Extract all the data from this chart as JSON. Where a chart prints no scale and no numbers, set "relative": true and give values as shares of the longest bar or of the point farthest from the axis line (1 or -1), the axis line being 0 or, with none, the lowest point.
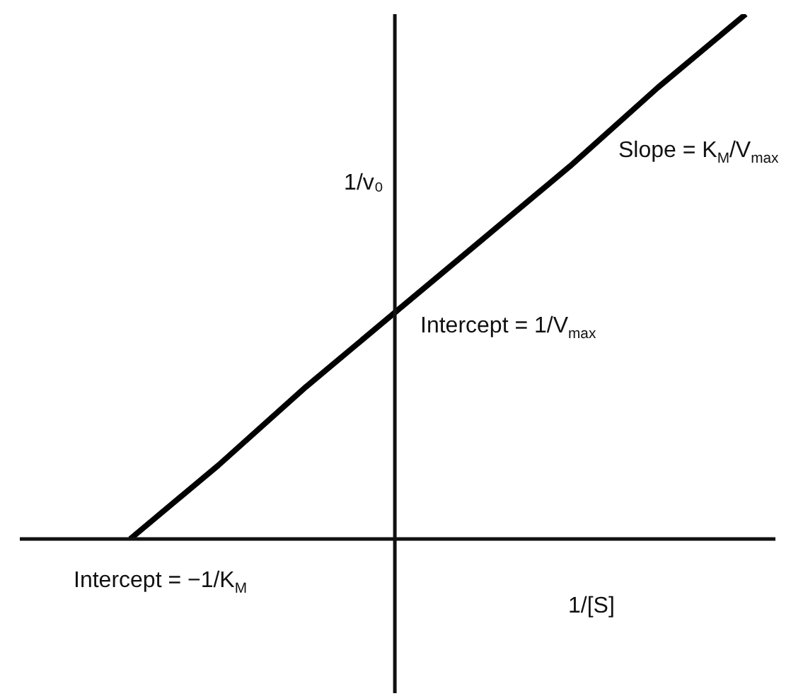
{
  "chart_data": {
    "type": "line",
    "relative": true,
    "categories": [
      null,
      null,
      null,
      null,
      null,
      null,
      null,
      null
    ],
    "legend": false,
    "marker": "none",
    "line_style": "solid",
    "series": [
      {
        "color": "#000000",
        "values": [
          0,
          0.14,
          0.29,
          0.43,
          0.57,
          0.71,
          0.86,
          1
        ]
      }
    ],
    "xlabel": "1/[S]",
    "ylabel": "1/v₀",
    "annotations": [
      "Slope = K$_{M}$/V$_{max}$",
      "Intercept = 1/V$_{max}$",
      "Intercept = −1/K$_{M}$"
    ]
  }
}
